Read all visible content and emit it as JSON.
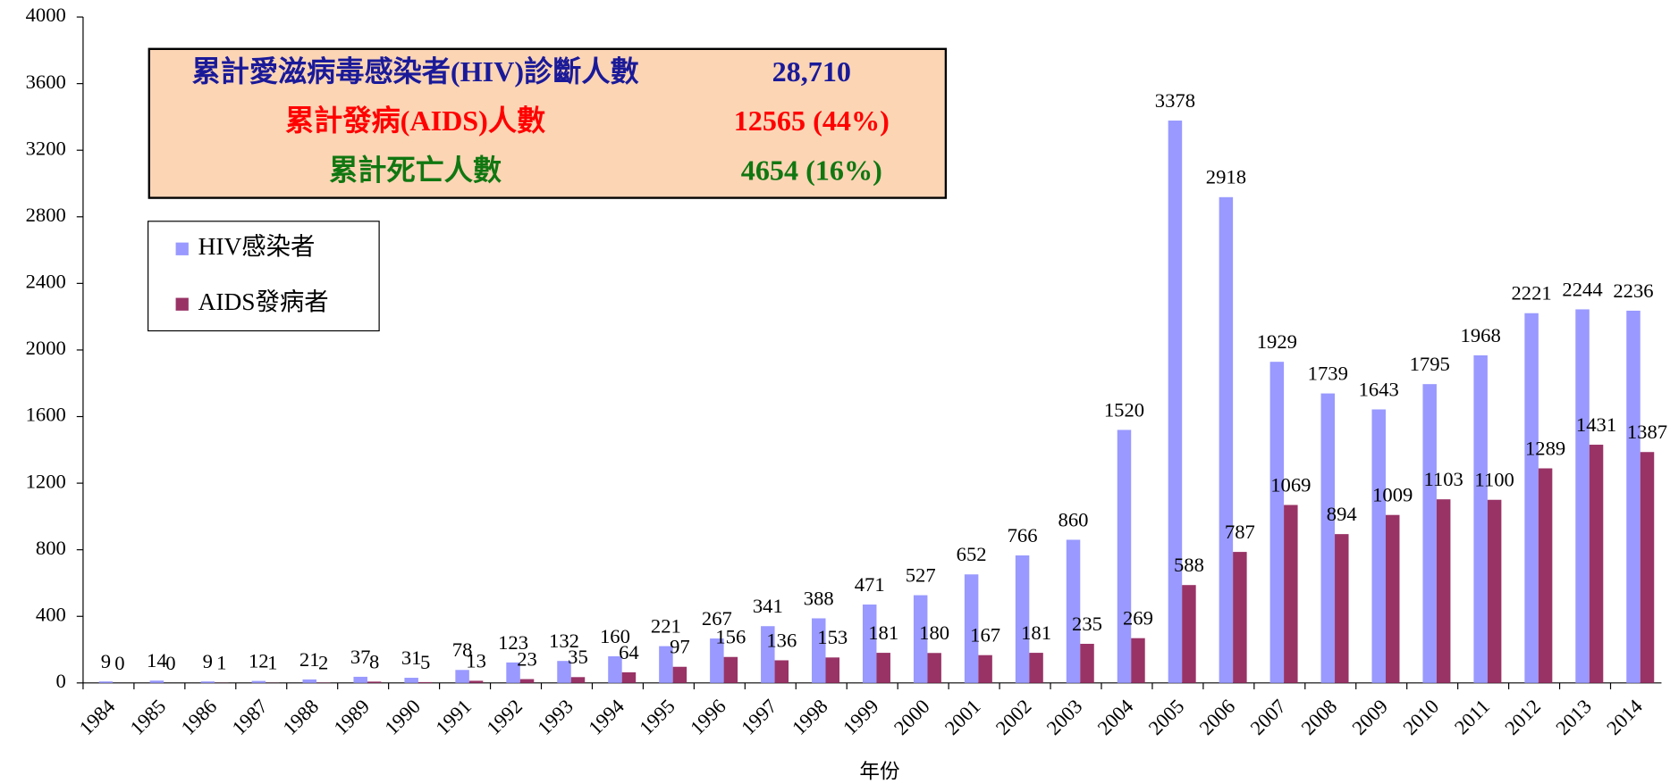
{
  "chart_data": {
    "type": "bar",
    "x_label": "年份",
    "categories": [
      "1984",
      "1985",
      "1986",
      "1987",
      "1988",
      "1989",
      "1990",
      "1991",
      "1992",
      "1993",
      "1994",
      "1995",
      "1996",
      "1997",
      "1998",
      "1999",
      "2000",
      "2001",
      "2002",
      "2003",
      "2004",
      "2005",
      "2006",
      "2007",
      "2008",
      "2009",
      "2010",
      "2011",
      "2012",
      "2013",
      "2014"
    ],
    "series": [
      {
        "name": "HIV感染者",
        "color": "#9999ff",
        "values": [
          9,
          14,
          9,
          12,
          21,
          37,
          31,
          78,
          123,
          132,
          160,
          221,
          267,
          341,
          388,
          471,
          527,
          652,
          766,
          860,
          1520,
          3378,
          2918,
          1929,
          1739,
          1643,
          1795,
          1968,
          2221,
          2244,
          2236
        ]
      },
      {
        "name": "AIDS發病者",
        "color": "#993366",
        "values": [
          0,
          0,
          1,
          1,
          2,
          8,
          5,
          13,
          23,
          35,
          64,
          97,
          156,
          136,
          153,
          181,
          180,
          167,
          181,
          235,
          269,
          588,
          787,
          1069,
          894,
          1009,
          1103,
          1100,
          1289,
          1431,
          1387
        ]
      }
    ],
    "ylim": [
      0,
      4000
    ],
    "yticks": [
      0,
      400,
      800,
      1200,
      1600,
      2000,
      2400,
      2800,
      3200,
      3600,
      4000
    ],
    "annotations": [
      {
        "text": "累計愛滋病毒感染者(HIV)診斷人數",
        "value": "28,710",
        "color": "#1a1a99"
      },
      {
        "text": "累計發病(AIDS)人數",
        "value": "12565 (44%)",
        "color": "#ff0000"
      },
      {
        "text": "累計死亡人數",
        "value": "4654 (16%)",
        "color": "#117711"
      }
    ],
    "legend": "upper left"
  }
}
